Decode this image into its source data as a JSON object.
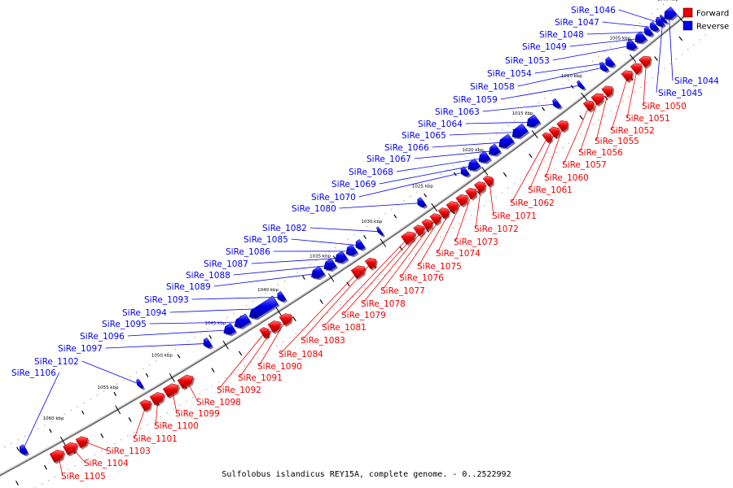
{
  "caption": "Sulfolobus islandicus REY15A, complete genome. - 0..2522992",
  "colors": {
    "forward": "#ee0000",
    "reverse": "#0000ee",
    "backbone": "#888888"
  },
  "legend": [
    {
      "label": "Forward",
      "color": "#ee0000"
    },
    {
      "label": "Reverse",
      "color": "#0000ee"
    }
  ],
  "ticks": [
    "1000 kbp",
    "1005 kbp",
    "1010 kbp",
    "1015 kbp",
    "1020 kbp",
    "1025 kbp",
    "1030 kbp",
    "1035 kbp",
    "1040 kbp",
    "1045 kbp",
    "1050 kbp",
    "1055 kbp",
    "1060 kbp"
  ],
  "reverse_genes": [
    "SiRe_1046",
    "SiRe_1047",
    "SiRe_1048",
    "SiRe_1049",
    "SiRe_1053",
    "SiRe_1054",
    "SiRe_1058",
    "SiRe_1059",
    "SiRe_1063",
    "SiRe_1064",
    "SiRe_1065",
    "SiRe_1066",
    "SiRe_1067",
    "SiRe_1068",
    "SiRe_1069",
    "SiRe_1070",
    "SiRe_1080",
    "SiRe_1082",
    "SiRe_1085",
    "SiRe_1086",
    "SiRe_1087",
    "SiRe_1088",
    "SiRe_1089",
    "SiRe_1093",
    "SiRe_1094",
    "SiRe_1095",
    "SiRe_1096",
    "SiRe_1097",
    "SiRe_1102",
    "SiRe_1106",
    "SiRe_1044",
    "SiRe_1045"
  ],
  "forward_genes": [
    "SiRe_1050",
    "SiRe_1051",
    "SiRe_1052",
    "SiRe_1055",
    "SiRe_1056",
    "SiRe_1057",
    "SiRe_1060",
    "SiRe_1061",
    "SiRe_1062",
    "SiRe_1071",
    "SiRe_1072",
    "SiRe_1073",
    "SiRe_1074",
    "SiRe_1075",
    "SiRe_1076",
    "SiRe_1077",
    "SiRe_1078",
    "SiRe_1079",
    "SiRe_1081",
    "SiRe_1083",
    "SiRe_1084",
    "SiRe_1090",
    "SiRe_1091",
    "SiRe_1092",
    "SiRe_1098",
    "SiRe_1099",
    "SiRe_1100",
    "SiRe_1101",
    "SiRe_1103",
    "SiRe_1104",
    "SiRe_1105"
  ]
}
